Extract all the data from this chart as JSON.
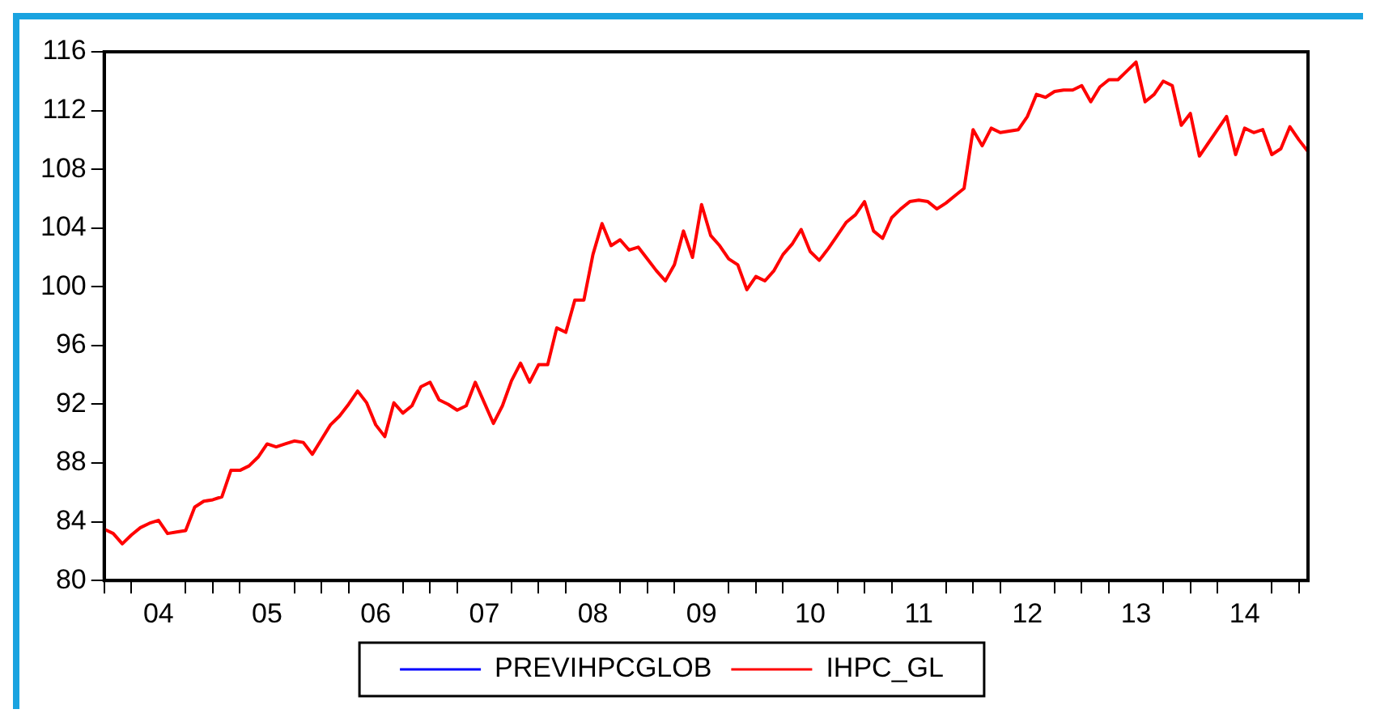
{
  "chart_data": {
    "type": "line",
    "x": [
      "2004-01",
      "2004-02",
      "2004-03",
      "2004-04",
      "2004-05",
      "2004-06",
      "2004-07",
      "2004-08",
      "2004-09",
      "2004-10",
      "2004-11",
      "2004-12",
      "2005-01",
      "2005-02",
      "2005-03",
      "2005-04",
      "2005-05",
      "2005-06",
      "2005-07",
      "2005-08",
      "2005-09",
      "2005-10",
      "2005-11",
      "2005-12",
      "2006-01",
      "2006-02",
      "2006-03",
      "2006-04",
      "2006-05",
      "2006-06",
      "2006-07",
      "2006-08",
      "2006-09",
      "2006-10",
      "2006-11",
      "2006-12",
      "2007-01",
      "2007-02",
      "2007-03",
      "2007-04",
      "2007-05",
      "2007-06",
      "2007-07",
      "2007-08",
      "2007-09",
      "2007-10",
      "2007-11",
      "2007-12",
      "2008-01",
      "2008-02",
      "2008-03",
      "2008-04",
      "2008-05",
      "2008-06",
      "2008-07",
      "2008-08",
      "2008-09",
      "2008-10",
      "2008-11",
      "2008-12",
      "2009-01",
      "2009-02",
      "2009-03",
      "2009-04",
      "2009-05",
      "2009-06",
      "2009-07",
      "2009-08",
      "2009-09",
      "2009-10",
      "2009-11",
      "2009-12",
      "2010-01",
      "2010-02",
      "2010-03",
      "2010-04",
      "2010-05",
      "2010-06",
      "2010-07",
      "2010-08",
      "2010-09",
      "2010-10",
      "2010-11",
      "2010-12",
      "2011-01",
      "2011-02",
      "2011-03",
      "2011-04",
      "2011-05",
      "2011-06",
      "2011-07",
      "2011-08",
      "2011-09",
      "2011-10",
      "2011-11",
      "2011-12",
      "2012-01",
      "2012-02",
      "2012-03",
      "2012-04",
      "2012-05",
      "2012-06",
      "2012-07",
      "2012-08",
      "2012-09",
      "2012-10",
      "2012-11",
      "2012-12",
      "2013-01",
      "2013-02",
      "2013-03",
      "2013-04",
      "2013-05",
      "2013-06",
      "2013-07",
      "2013-08",
      "2013-09",
      "2013-10",
      "2013-11",
      "2013-12",
      "2014-01",
      "2014-02",
      "2014-03",
      "2014-04",
      "2014-05",
      "2014-06",
      "2014-07",
      "2014-08",
      "2014-09",
      "2014-10",
      "2014-11",
      "2014-12",
      "2015-01",
      "2015-02"
    ],
    "series": [
      {
        "name": "PREVIHPCGLOB",
        "color": "#0000ff",
        "values": [
          null,
          null,
          null,
          null,
          null,
          null,
          null,
          null,
          null,
          null,
          null,
          null,
          null,
          null,
          null,
          null,
          null,
          null,
          null,
          null,
          null,
          null,
          null,
          null,
          null,
          null,
          null,
          null,
          null,
          null,
          null,
          null,
          null,
          null,
          null,
          null,
          null,
          null,
          null,
          null,
          null,
          null,
          null,
          null,
          null,
          null,
          null,
          null,
          null,
          null,
          null,
          null,
          null,
          null,
          null,
          null,
          null,
          null,
          null,
          null,
          null,
          null,
          null,
          null,
          null,
          null,
          null,
          null,
          null,
          null,
          null,
          null,
          null,
          null,
          null,
          null,
          null,
          null,
          null,
          null,
          null,
          null,
          null,
          null,
          null,
          null,
          null,
          null,
          null,
          null,
          null,
          null,
          null,
          null,
          null,
          null,
          null,
          null,
          null,
          null,
          null,
          null,
          null,
          null,
          null,
          null,
          null,
          null,
          null,
          null,
          null,
          null,
          null,
          null,
          null,
          null,
          null,
          null,
          null,
          null,
          null,
          null,
          null,
          null,
          null,
          null,
          null,
          null,
          null,
          null,
          null,
          null,
          null,
          null
        ]
      },
      {
        "name": "IHPC_GL",
        "color": "#ff0000",
        "values": [
          83.5,
          83.2,
          82.5,
          83.1,
          83.6,
          83.9,
          84.1,
          83.2,
          83.3,
          83.4,
          85.0,
          85.4,
          85.5,
          85.7,
          87.5,
          87.5,
          87.8,
          88.4,
          89.3,
          89.1,
          89.3,
          89.5,
          89.4,
          88.6,
          89.6,
          90.6,
          91.2,
          92.0,
          92.9,
          92.1,
          90.6,
          89.8,
          92.1,
          91.4,
          91.9,
          93.2,
          93.5,
          92.3,
          92.0,
          91.6,
          91.9,
          93.5,
          92.1,
          90.7,
          91.9,
          93.6,
          94.8,
          93.5,
          94.7,
          94.7,
          97.2,
          96.9,
          99.1,
          99.1,
          102.2,
          104.3,
          102.8,
          103.2,
          102.5,
          102.7,
          101.9,
          101.1,
          100.4,
          101.5,
          103.8,
          102.0,
          105.6,
          103.5,
          102.8,
          101.9,
          101.5,
          99.8,
          100.7,
          100.4,
          101.1,
          102.2,
          102.9,
          103.9,
          102.4,
          101.8,
          102.6,
          103.5,
          104.4,
          104.9,
          105.8,
          103.8,
          103.3,
          104.7,
          105.3,
          105.8,
          105.9,
          105.8,
          105.3,
          105.7,
          106.2,
          106.7,
          110.7,
          109.6,
          110.8,
          110.5,
          110.6,
          110.7,
          111.6,
          113.1,
          112.9,
          113.3,
          113.4,
          113.4,
          113.7,
          112.6,
          113.6,
          114.1,
          114.1,
          114.7,
          115.3,
          112.6,
          113.1,
          114.0,
          113.7,
          111.0,
          111.8,
          108.9,
          109.8,
          110.7,
          111.6,
          109.0,
          110.8,
          110.5,
          110.7,
          109.0,
          109.4,
          110.9,
          110.0,
          109.2
        ]
      }
    ],
    "xlim": [
      "2004-01",
      "2015-02"
    ],
    "xticks": [
      {
        "value": "2004-01",
        "label": null
      },
      {
        "value": "2004-04",
        "label": null
      },
      {
        "value": "2004-07",
        "label": "04"
      },
      {
        "value": "2004-10",
        "label": null
      },
      {
        "value": "2005-01",
        "label": null
      },
      {
        "value": "2005-04",
        "label": null
      },
      {
        "value": "2005-07",
        "label": "05"
      },
      {
        "value": "2005-10",
        "label": null
      },
      {
        "value": "2006-01",
        "label": null
      },
      {
        "value": "2006-04",
        "label": null
      },
      {
        "value": "2006-07",
        "label": "06"
      },
      {
        "value": "2006-10",
        "label": null
      },
      {
        "value": "2007-01",
        "label": null
      },
      {
        "value": "2007-04",
        "label": null
      },
      {
        "value": "2007-07",
        "label": "07"
      },
      {
        "value": "2007-10",
        "label": null
      },
      {
        "value": "2008-01",
        "label": null
      },
      {
        "value": "2008-04",
        "label": null
      },
      {
        "value": "2008-07",
        "label": "08"
      },
      {
        "value": "2008-10",
        "label": null
      },
      {
        "value": "2009-01",
        "label": null
      },
      {
        "value": "2009-04",
        "label": null
      },
      {
        "value": "2009-07",
        "label": "09"
      },
      {
        "value": "2009-10",
        "label": null
      },
      {
        "value": "2010-01",
        "label": null
      },
      {
        "value": "2010-04",
        "label": null
      },
      {
        "value": "2010-07",
        "label": "10"
      },
      {
        "value": "2010-10",
        "label": null
      },
      {
        "value": "2011-01",
        "label": null
      },
      {
        "value": "2011-04",
        "label": null
      },
      {
        "value": "2011-07",
        "label": "11"
      },
      {
        "value": "2011-10",
        "label": null
      },
      {
        "value": "2012-01",
        "label": null
      },
      {
        "value": "2012-04",
        "label": null
      },
      {
        "value": "2012-07",
        "label": "12"
      },
      {
        "value": "2012-10",
        "label": null
      },
      {
        "value": "2013-01",
        "label": null
      },
      {
        "value": "2013-04",
        "label": null
      },
      {
        "value": "2013-07",
        "label": "13"
      },
      {
        "value": "2013-10",
        "label": null
      },
      {
        "value": "2014-01",
        "label": null
      },
      {
        "value": "2014-04",
        "label": null
      },
      {
        "value": "2014-07",
        "label": "14"
      },
      {
        "value": "2014-10",
        "label": null
      },
      {
        "value": "2015-01",
        "label": null
      }
    ],
    "ylim": [
      80,
      116
    ],
    "yticks": [
      80,
      84,
      88,
      92,
      96,
      100,
      104,
      108,
      112,
      116
    ],
    "grid": false,
    "legend": "bottom",
    "marker": "none",
    "line_style": "solid"
  }
}
